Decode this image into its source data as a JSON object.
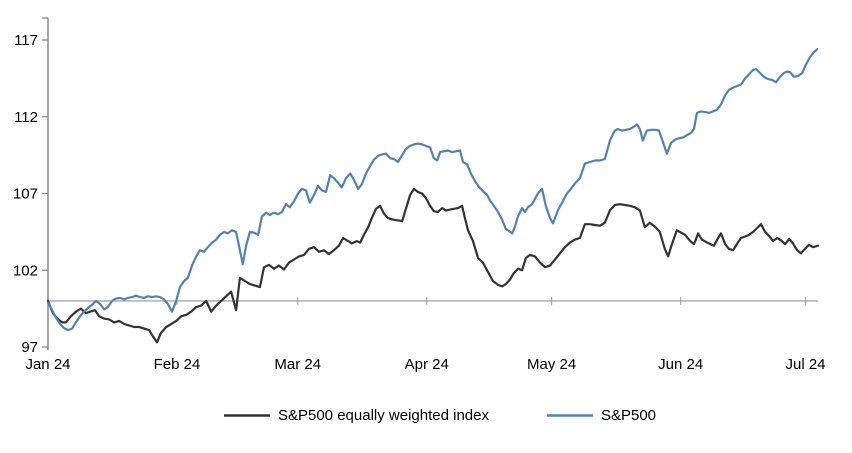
{
  "chart_data": {
    "type": "line",
    "title": "",
    "xlabel": "",
    "ylabel": "",
    "grid": false,
    "legend_position": "bottom",
    "baseline_value": 100,
    "colors": {
      "equal_weight_line": "#333333",
      "sp500_line": "#4e81bd",
      "baseline": "#a6a6a6",
      "axis": "#808080",
      "text": "#000000"
    },
    "y_axis": {
      "ticks": [
        97,
        102,
        107,
        112,
        117
      ],
      "range": [
        97,
        118.6
      ]
    },
    "x_axis": {
      "tick_labels": [
        "Jan 24",
        "Feb 24",
        "Mar 24",
        "Apr 24",
        "May 24",
        "Jun 24",
        "Jul 24"
      ],
      "tick_days": [
        0,
        31,
        60,
        91,
        121,
        152,
        182
      ],
      "range_days": [
        0,
        185
      ]
    },
    "series": [
      {
        "name": "S&P500 equally weighted index",
        "color": "#333333",
        "d": [
          0,
          1.2,
          2.2,
          3.4,
          4.3,
          5.5,
          6.7,
          7.9,
          9.1,
          10.1,
          11.3,
          12.3,
          13.5,
          14.7,
          15.9,
          17.1,
          18.3,
          19.5,
          20.7,
          21.9,
          23.1,
          24.3,
          25.2,
          26.2,
          27.1,
          28.4,
          29.6,
          30.8,
          32.0,
          33.2,
          34.4,
          35.6,
          36.8,
          38.0,
          39.2,
          40.4,
          41.6,
          42.8,
          44.0,
          45.2,
          46.1,
          47.3,
          48.5,
          49.7,
          50.9,
          51.9,
          53.1,
          54.3,
          55.5,
          56.7,
          57.9,
          59.1,
          60.3,
          61.5,
          62.7,
          63.9,
          65.1,
          66.3,
          67.5,
          68.7,
          69.9,
          70.9,
          72.1,
          73.0,
          74.2,
          75.0,
          75.9,
          76.9,
          77.8,
          78.8,
          79.8,
          80.7,
          81.7,
          82.9,
          84.1,
          85.1,
          86.0,
          87.0,
          87.9,
          88.9,
          89.9,
          90.8,
          91.8,
          92.7,
          93.7,
          94.7,
          95.6,
          96.6,
          97.5,
          98.5,
          99.5,
          100.0,
          100.9,
          102.1,
          103.3,
          104.5,
          105.7,
          106.9,
          108.1,
          109.1,
          110.0,
          111.0,
          111.9,
          112.9,
          113.9,
          114.8,
          115.8,
          117.0,
          118.2,
          119.4,
          120.6,
          121.8,
          123.0,
          124.2,
          125.4,
          126.6,
          127.8,
          129.0,
          130.2,
          131.4,
          132.6,
          133.8,
          135.0,
          136.2,
          137.4,
          138.6,
          139.8,
          141.0,
          142.2,
          143.4,
          144.6,
          145.8,
          147.0,
          148.2,
          149.0,
          149.9,
          151.1,
          152.1,
          153.1,
          154.3,
          155.2,
          156.2,
          157.1,
          158.1,
          159.1,
          160.0,
          161.0,
          161.7,
          162.7,
          163.6,
          164.6,
          165.6,
          166.5,
          167.5,
          168.4,
          169.4,
          170.4,
          171.3,
          172.3,
          173.2,
          174.2,
          175.2,
          176.1,
          177.1,
          178.1,
          179.0,
          180.0,
          180.9,
          181.9,
          182.8,
          183.8,
          185.0
        ],
        "v": [
          100,
          99.2,
          98.85,
          98.6,
          98.6,
          99.0,
          99.3,
          99.5,
          99.2,
          99.3,
          99.4,
          99.0,
          98.85,
          98.8,
          98.6,
          98.7,
          98.5,
          98.4,
          98.3,
          98.3,
          98.2,
          98.1,
          97.7,
          97.3,
          97.9,
          98.3,
          98.5,
          98.7,
          99.0,
          99.1,
          99.3,
          99.6,
          99.7,
          100.0,
          99.3,
          99.7,
          100.0,
          100.3,
          100.6,
          99.4,
          101.5,
          101.3,
          101.1,
          101.0,
          100.9,
          102.2,
          102.35,
          102.1,
          102.3,
          102.05,
          102.5,
          102.7,
          102.9,
          103.0,
          103.4,
          103.5,
          103.2,
          103.3,
          103.05,
          103.3,
          103.6,
          104.1,
          103.9,
          103.75,
          103.9,
          103.8,
          104.3,
          104.8,
          105.4,
          106.0,
          106.2,
          105.7,
          105.4,
          105.3,
          105.25,
          105.2,
          106.0,
          106.9,
          107.3,
          107.1,
          107.0,
          106.7,
          106.2,
          105.85,
          105.8,
          106.05,
          105.9,
          105.95,
          106.0,
          106.05,
          106.2,
          105.6,
          104.6,
          103.9,
          102.8,
          102.5,
          101.9,
          101.3,
          101.05,
          100.95,
          101.1,
          101.4,
          101.8,
          102.1,
          102.0,
          102.8,
          103.0,
          102.9,
          102.5,
          102.2,
          102.3,
          102.7,
          103.1,
          103.5,
          103.8,
          104.0,
          104.1,
          105.0,
          105.0,
          104.95,
          104.9,
          105.1,
          105.9,
          106.25,
          106.3,
          106.25,
          106.2,
          106.1,
          105.9,
          104.8,
          105.1,
          104.85,
          104.5,
          103.4,
          102.9,
          103.7,
          104.6,
          104.45,
          104.3,
          103.9,
          103.7,
          104.4,
          104.0,
          103.85,
          103.7,
          103.6,
          104.1,
          104.4,
          103.7,
          103.4,
          103.3,
          103.75,
          104.1,
          104.2,
          104.3,
          104.5,
          104.75,
          105.0,
          104.5,
          104.25,
          103.9,
          104.1,
          103.95,
          103.7,
          104.05,
          103.75,
          103.3,
          103.1,
          103.4,
          103.65,
          103.5,
          103.6
        ]
      },
      {
        "name": "S&P500",
        "color": "#4e81bd",
        "d": [
          0,
          1.0,
          1.9,
          2.9,
          3.8,
          4.8,
          5.8,
          6.7,
          7.7,
          8.6,
          9.6,
          10.6,
          11.5,
          12.5,
          13.5,
          14.4,
          15.4,
          16.3,
          17.3,
          18.3,
          19.2,
          20.2,
          21.1,
          22.1,
          23.1,
          24.0,
          25.0,
          25.9,
          26.9,
          27.9,
          28.8,
          29.8,
          30.8,
          31.7,
          32.7,
          33.6,
          34.6,
          35.6,
          36.5,
          37.5,
          38.4,
          39.4,
          40.4,
          41.3,
          42.3,
          43.2,
          44.2,
          45.2,
          46.1,
          46.8,
          47.6,
          48.5,
          49.5,
          50.5,
          51.4,
          52.4,
          53.3,
          54.3,
          55.3,
          56.2,
          57.2,
          58.1,
          59.1,
          60.1,
          61.0,
          62.0,
          62.9,
          63.9,
          64.9,
          65.8,
          66.8,
          67.8,
          68.7,
          69.7,
          70.6,
          71.6,
          72.6,
          73.5,
          74.5,
          75.4,
          76.4,
          77.4,
          78.3,
          79.3,
          80.3,
          81.2,
          82.2,
          83.1,
          84.1,
          85.1,
          86.0,
          87.0,
          87.9,
          88.9,
          89.9,
          90.8,
          91.8,
          92.7,
          93.5,
          94.2,
          95.1,
          96.1,
          97.1,
          98.0,
          99.0,
          99.7,
          100.7,
          101.6,
          102.6,
          103.5,
          104.5,
          105.5,
          106.2,
          107.1,
          108.1,
          109.1,
          110.0,
          110.8,
          111.5,
          112.2,
          112.9,
          113.9,
          114.6,
          115.3,
          116.3,
          117.7,
          118.7,
          119.6,
          120.6,
          121.3,
          122.5,
          123.7,
          124.7,
          125.6,
          126.6,
          127.8,
          129.0,
          130.2,
          131.4,
          132.6,
          133.8,
          135.0,
          136.2,
          136.9,
          137.9,
          138.9,
          139.8,
          140.8,
          141.5,
          142.2,
          142.9,
          143.9,
          144.9,
          145.8,
          146.8,
          147.8,
          148.7,
          149.7,
          150.6,
          151.6,
          152.6,
          153.5,
          154.5,
          155.2,
          155.9,
          156.9,
          157.9,
          158.8,
          159.8,
          160.7,
          161.7,
          162.7,
          163.6,
          164.6,
          165.5,
          166.5,
          167.5,
          168.4,
          169.4,
          170.1,
          171.1,
          172.0,
          173.0,
          174.0,
          174.9,
          175.9,
          176.8,
          177.6,
          178.3,
          179.2,
          180.2,
          181.2,
          182.1,
          183.1,
          184.0,
          184.8
        ],
        "v": [
          99.9,
          99.4,
          98.9,
          98.5,
          98.25,
          98.1,
          98.2,
          98.6,
          99.0,
          99.3,
          99.55,
          99.75,
          100.0,
          99.8,
          99.45,
          99.6,
          100.0,
          100.15,
          100.2,
          100.1,
          100.2,
          100.25,
          100.35,
          100.25,
          100.2,
          100.3,
          100.25,
          100.3,
          100.25,
          100.1,
          99.8,
          99.3,
          100.0,
          100.9,
          101.3,
          101.5,
          102.3,
          102.9,
          103.3,
          103.2,
          103.5,
          103.8,
          104.0,
          104.3,
          104.5,
          104.4,
          104.6,
          104.5,
          103.3,
          102.4,
          103.6,
          104.5,
          104.45,
          104.3,
          105.5,
          105.75,
          105.6,
          105.75,
          105.65,
          105.8,
          106.3,
          106.1,
          106.5,
          107.0,
          107.3,
          107.2,
          106.4,
          106.9,
          107.5,
          107.2,
          107.1,
          108.2,
          108.0,
          107.7,
          107.4,
          108.0,
          108.3,
          107.9,
          107.3,
          107.6,
          108.3,
          108.8,
          109.2,
          109.45,
          109.55,
          109.6,
          109.3,
          109.25,
          109.05,
          109.5,
          109.9,
          110.1,
          110.2,
          110.25,
          110.2,
          110.1,
          110.0,
          109.3,
          109.15,
          109.7,
          109.75,
          109.8,
          109.7,
          109.75,
          109.8,
          109.05,
          108.9,
          108.3,
          107.8,
          107.45,
          107.15,
          106.9,
          106.55,
          106.2,
          105.8,
          105.3,
          104.7,
          104.55,
          104.4,
          104.85,
          105.5,
          106.05,
          105.8,
          106.1,
          106.3,
          107.0,
          107.3,
          106.2,
          105.4,
          105.05,
          105.9,
          106.5,
          107.0,
          107.3,
          107.65,
          108.0,
          108.95,
          109.05,
          109.15,
          109.15,
          109.25,
          110.45,
          111.1,
          111.2,
          111.1,
          111.15,
          111.2,
          111.35,
          111.5,
          111.2,
          110.45,
          111.1,
          111.15,
          111.15,
          111.1,
          110.3,
          109.6,
          110.3,
          110.5,
          110.6,
          110.65,
          110.8,
          110.95,
          111.2,
          112.25,
          112.35,
          112.3,
          112.25,
          112.35,
          112.45,
          112.8,
          113.4,
          113.75,
          113.9,
          114.0,
          114.1,
          114.5,
          114.75,
          115.05,
          115.1,
          114.85,
          114.6,
          114.45,
          114.4,
          114.25,
          114.6,
          114.85,
          114.95,
          114.9,
          114.6,
          114.65,
          114.85,
          115.4,
          115.9,
          116.2,
          116.4
        ]
      }
    ]
  },
  "legend": {
    "item1_label": "S&P500 equally weighted index",
    "item2_label": "S&P500"
  }
}
